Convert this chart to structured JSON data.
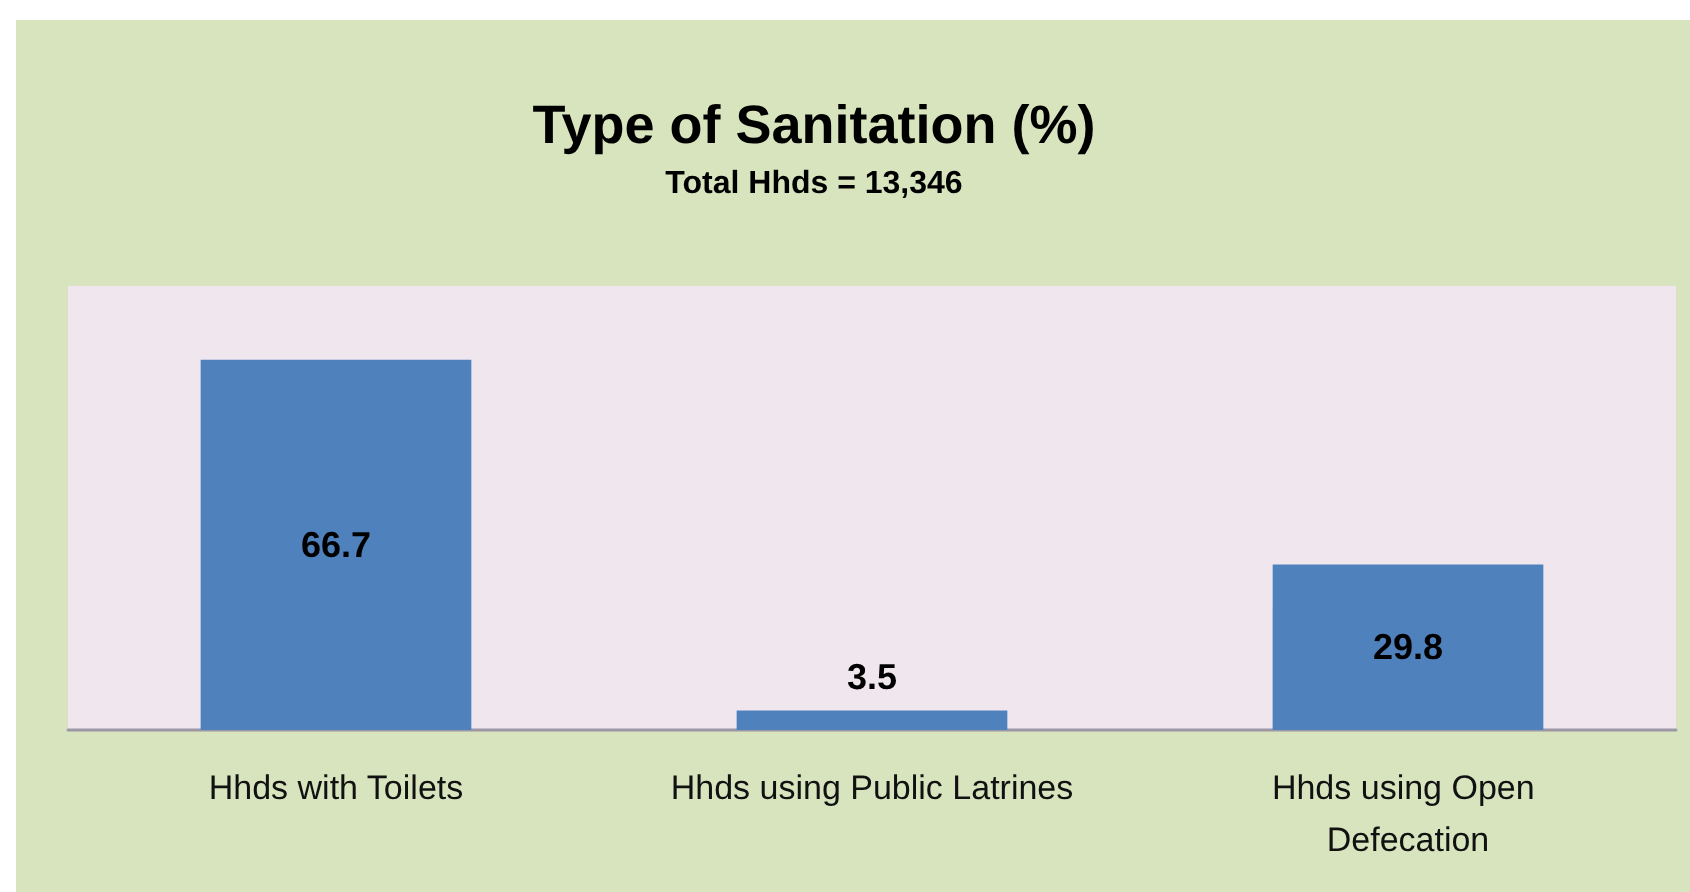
{
  "chart_data": {
    "type": "bar",
    "title": "Type of Sanitation (%)",
    "subtitle": "Total Hhds = 13,346",
    "categories": [
      "Hhds with Toilets",
      "Hhds using Public Latrines",
      "Hhds using Open Defecation"
    ],
    "values": [
      66.7,
      3.5,
      29.8
    ],
    "color": "#4f81bd",
    "ylim": [
      0,
      80
    ],
    "tick_labels": "x",
    "data_labels": true
  }
}
